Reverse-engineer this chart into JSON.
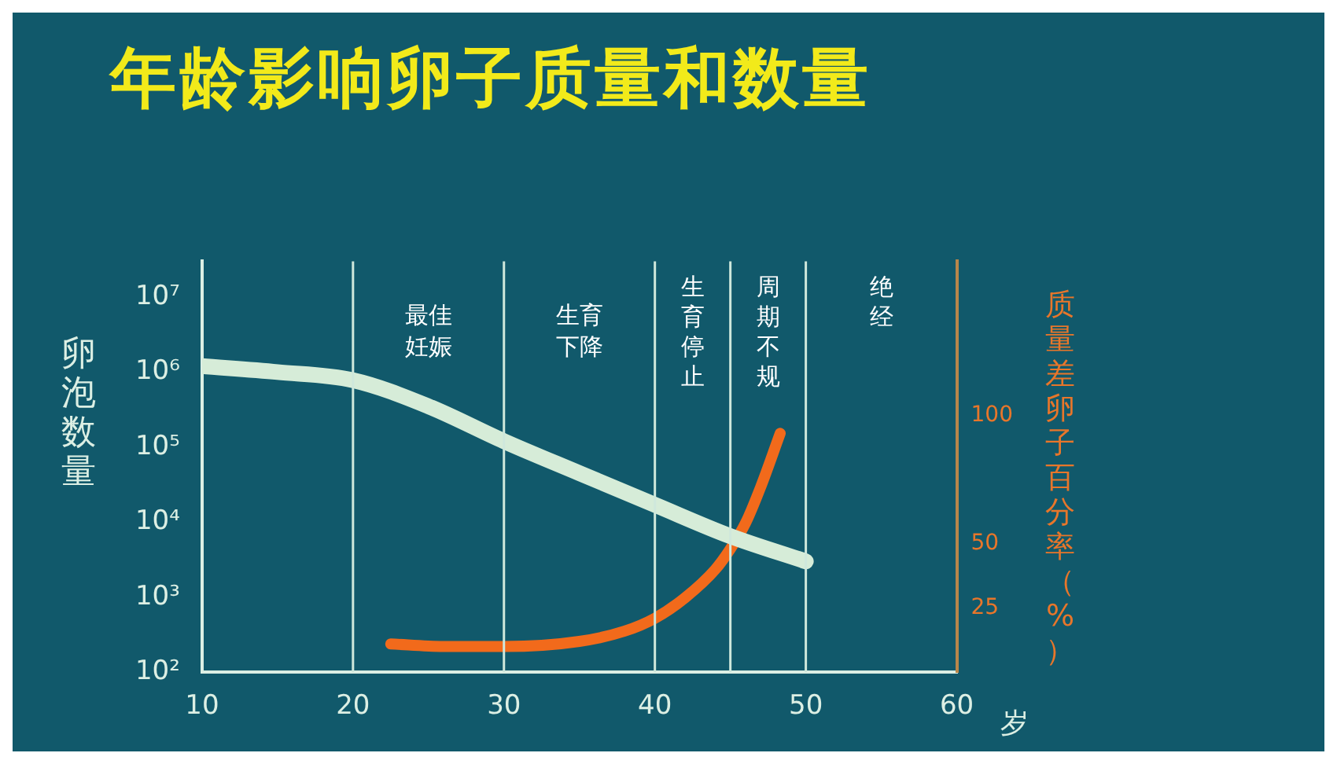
{
  "chart_data": {
    "type": "line",
    "title": "年龄影响卵子质量和数量",
    "xlabel": "岁",
    "ylabel": "卵泡数量",
    "y2label": "质量差卵子百分率（%）",
    "xlim": [
      10,
      60
    ],
    "xticks": [
      10,
      20,
      30,
      40,
      50,
      60
    ],
    "ylim": [
      100,
      30000000
    ],
    "yticks": [
      {
        "value": 100,
        "label": "10²"
      },
      {
        "value": 1000,
        "label": "10³"
      },
      {
        "value": 10000,
        "label": "10⁴"
      },
      {
        "value": 100000,
        "label": "10⁵"
      },
      {
        "value": 1000000,
        "label": "10⁶"
      },
      {
        "value": 10000000,
        "label": "10⁷"
      }
    ],
    "log": "y",
    "y2lim": [
      0,
      160
    ],
    "y2ticks": [
      25,
      50,
      100
    ],
    "grid": false,
    "legend": false,
    "marker": "none",
    "series": [
      {
        "color": "#d6ecd8",
        "axis": "y",
        "x": [
          10,
          15,
          20,
          25,
          30,
          35,
          40,
          45,
          50
        ],
        "values": [
          1200000,
          1000000,
          780000,
          350000,
          120000,
          45000,
          17000,
          6500,
          3000
        ]
      },
      {
        "color": "#f26a1b",
        "axis": "y2",
        "x": [
          22.5,
          26,
          30,
          35,
          38,
          40,
          42,
          44,
          45,
          46,
          47,
          48.3
        ],
        "values": [
          11,
          10,
          10,
          12,
          16,
          21,
          29,
          40,
          48,
          58,
          72,
          93
        ]
      }
    ],
    "ref_lines": [
      {
        "axis": "x",
        "value": 20,
        "label": "最佳妊娠",
        "color": "#cfe8dc"
      },
      {
        "axis": "x",
        "value": 30,
        "label": "生育下降",
        "color": "#cfe8dc"
      },
      {
        "axis": "x",
        "value": 40,
        "label": "生育停止",
        "color": "#cfe8dc"
      },
      {
        "axis": "x",
        "value": 45,
        "label": "周期不规",
        "color": "#cfe8dc"
      },
      {
        "axis": "x",
        "value": 50,
        "label": "绝经",
        "color": "#cfe8dc"
      }
    ]
  }
}
